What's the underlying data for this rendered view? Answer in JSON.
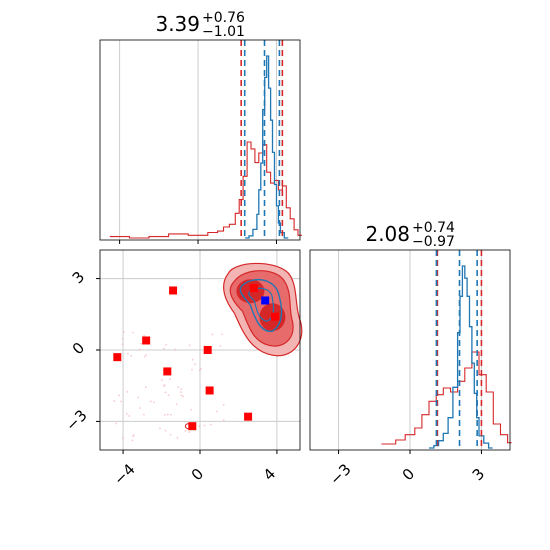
{
  "colors": {
    "blue": "#1f77b4",
    "red": "#d62728",
    "marker_red": "#ff0000",
    "marker_blue": "#0000ff",
    "grid": "#cccccc"
  },
  "chart_data": [
    {
      "id": "hist_p1",
      "type": "histogram",
      "title": {
        "main": "3.39",
        "plus": "+0.76",
        "minus": "−1.01"
      },
      "xlim": [
        -5,
        5.2
      ],
      "quantile_lines_blue": [
        2.38,
        3.39,
        4.15
      ],
      "quantile_lines_red": [
        2.2,
        4.3
      ],
      "hist_blue": {
        "x": [
          2.4,
          2.6,
          2.8,
          3.0,
          3.1,
          3.2,
          3.3,
          3.4,
          3.5,
          3.6,
          3.7,
          3.8,
          3.9,
          4.0,
          4.1,
          4.2,
          4.4
        ],
        "y": [
          0,
          2,
          8,
          22,
          45,
          70,
          120,
          150,
          170,
          140,
          110,
          80,
          50,
          30,
          14,
          5,
          0
        ]
      },
      "hist_red": {
        "x": [
          -4.5,
          -3.5,
          -2.5,
          -1.5,
          -0.5,
          0.0,
          0.5,
          1.0,
          1.3,
          1.6,
          1.9,
          2.1,
          2.3,
          2.5,
          2.7,
          2.9,
          3.1,
          3.3,
          3.5,
          3.7,
          3.9,
          4.1,
          4.3,
          4.5,
          4.7,
          4.9,
          5.1
        ],
        "y": [
          1,
          0,
          1,
          3,
          2,
          2,
          4,
          5,
          8,
          10,
          18,
          28,
          45,
          70,
          65,
          55,
          62,
          68,
          48,
          40,
          42,
          35,
          38,
          22,
          14,
          6,
          2
        ]
      }
    },
    {
      "id": "scatter_2d",
      "type": "scatter",
      "xlim": [
        -5.2,
        5.2
      ],
      "ylim": [
        -4.2,
        4.2
      ],
      "xticks": [
        "−4",
        "0",
        "4"
      ],
      "yticks": [
        "−3",
        "0",
        "3"
      ],
      "red_points": {
        "x": [
          -4.3,
          -2.8,
          -1.7,
          -1.4,
          0.4,
          0.5,
          -0.4,
          2.5,
          2.8,
          3.9
        ],
        "y": [
          -0.3,
          0.4,
          -0.9,
          2.5,
          0.0,
          -1.7,
          -3.2,
          -2.8,
          2.6,
          1.4
        ]
      },
      "blue_point": {
        "x": 3.39,
        "y": 2.08
      },
      "contours": "red filled contours plus blue contours around the mode"
    },
    {
      "id": "hist_p2",
      "type": "histogram",
      "title": {
        "main": "2.08",
        "plus": "+0.74",
        "minus": "−0.97"
      },
      "xlim": [
        -4.2,
        4.2
      ],
      "xticks": [
        "−3",
        "0",
        "3"
      ],
      "quantile_lines_blue": [
        1.11,
        2.08,
        2.82
      ],
      "quantile_lines_red": [
        1.15,
        3.0
      ],
      "hist_blue": {
        "x": [
          0.8,
          1.0,
          1.2,
          1.4,
          1.6,
          1.8,
          2.0,
          2.1,
          2.2,
          2.3,
          2.4,
          2.5,
          2.6,
          2.7,
          2.8,
          2.9,
          3.1,
          3.3
        ],
        "y": [
          0,
          2,
          6,
          12,
          25,
          50,
          95,
          125,
          150,
          140,
          125,
          100,
          70,
          45,
          25,
          10,
          4,
          0
        ]
      },
      "hist_red": {
        "x": [
          -1.2,
          -0.6,
          -0.2,
          0.2,
          0.5,
          0.8,
          1.1,
          1.4,
          1.7,
          2.0,
          2.3,
          2.6,
          2.9,
          3.2,
          3.5,
          3.8,
          4.1
        ],
        "y": [
          3,
          6,
          10,
          15,
          25,
          35,
          40,
          45,
          42,
          50,
          60,
          72,
          55,
          42,
          18,
          10,
          4
        ]
      }
    }
  ]
}
